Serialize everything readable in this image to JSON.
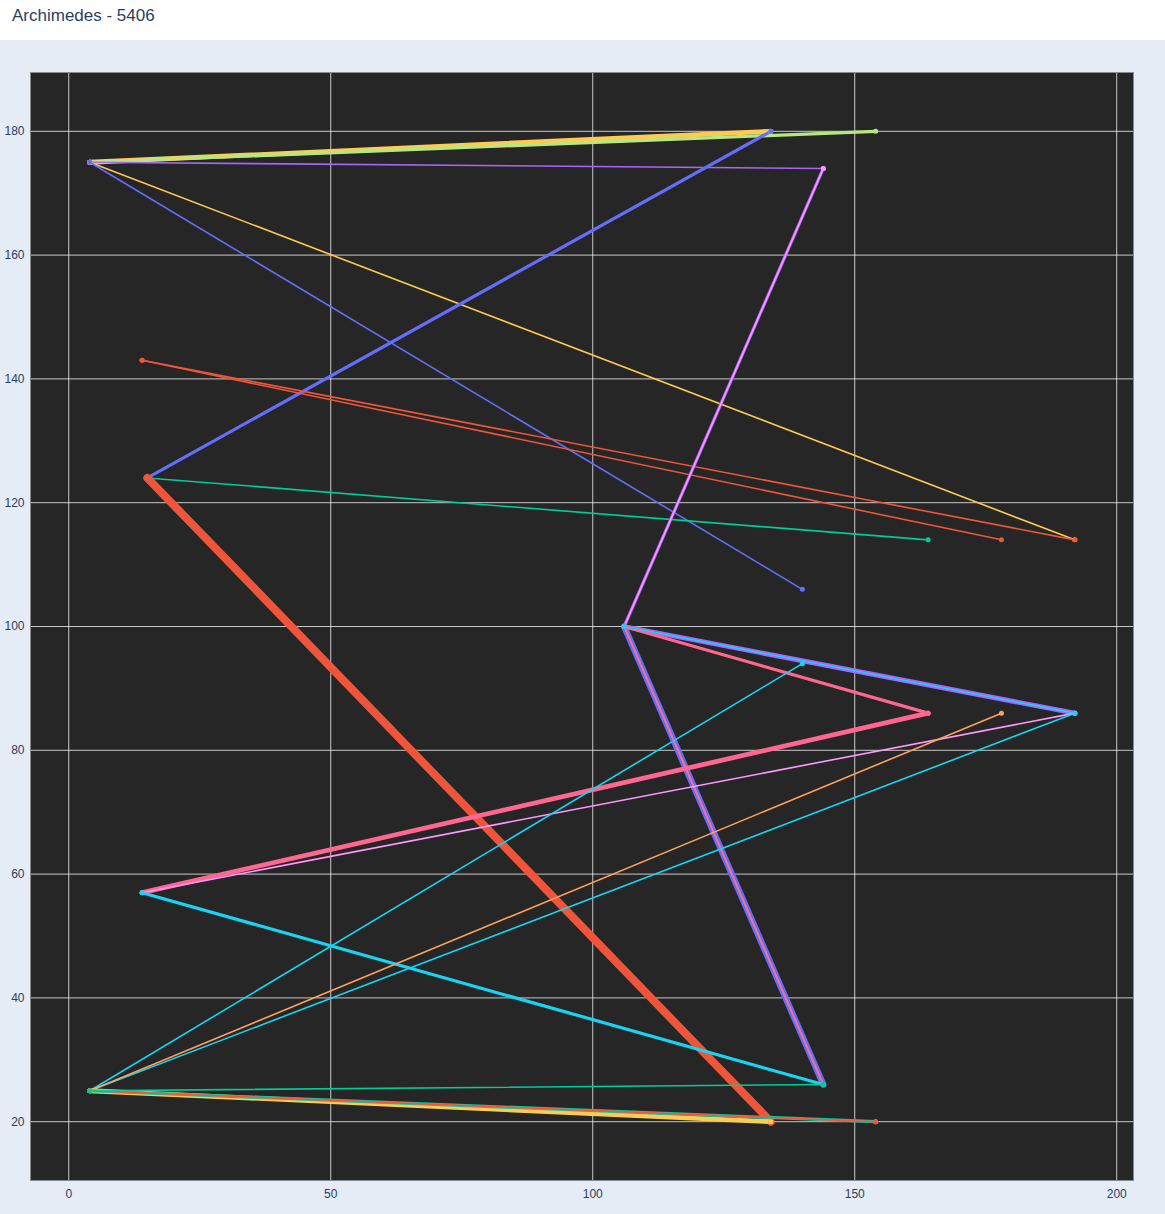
{
  "chart_data": {
    "type": "line",
    "title": "Archimedes - 5406",
    "xlim": [
      -7.3,
      203.2
    ],
    "xticks": [
      0,
      50,
      100,
      150,
      200
    ],
    "ylim": [
      10.5,
      189.5
    ],
    "yticks": [
      20,
      40,
      60,
      80,
      100,
      120,
      140,
      160,
      180
    ],
    "grid": true,
    "marker": "circle",
    "segments": [
      {
        "x": [
          4,
          134
        ],
        "y": [
          175,
          180
        ],
        "color": "#FECB52",
        "count": 3
      },
      {
        "x": [
          4,
          154
        ],
        "y": [
          175,
          180
        ],
        "color": "#B6E880",
        "count": 2
      },
      {
        "x": [
          4,
          144
        ],
        "y": [
          175,
          174
        ],
        "color": "#ab63fa",
        "count": 1
      },
      {
        "x": [
          4,
          192
        ],
        "y": [
          175,
          114
        ],
        "color": "#FECB52",
        "count": 1
      },
      {
        "x": [
          4,
          140
        ],
        "y": [
          175,
          106
        ],
        "color": "#636efa",
        "count": 1
      },
      {
        "x": [
          15,
          134
        ],
        "y": [
          124,
          180
        ],
        "color": "#636efa",
        "count": 2
      },
      {
        "x": [
          15,
          164
        ],
        "y": [
          124,
          114
        ],
        "color": "#00cc96",
        "count": 1
      },
      {
        "x": [
          15,
          134
        ],
        "y": [
          124,
          20
        ],
        "color": "#EF553B",
        "count": 5
      },
      {
        "x": [
          14,
          178
        ],
        "y": [
          143,
          114
        ],
        "color": "#EF553B",
        "count": 1
      },
      {
        "x": [
          14,
          192
        ],
        "y": [
          143,
          114
        ],
        "color": "#EF553B",
        "count": 1
      },
      {
        "x": [
          106,
          144
        ],
        "y": [
          100,
          174
        ],
        "color": "#ab63fa",
        "count": 2
      },
      {
        "x": [
          106,
          144
        ],
        "y": [
          100,
          174
        ],
        "color": "#FF97FF",
        "count": 1
      },
      {
        "x": [
          106,
          144
        ],
        "y": [
          100,
          26
        ],
        "color": "#636efa",
        "count": 4
      },
      {
        "x": [
          106,
          144
        ],
        "y": [
          100,
          26
        ],
        "color": "#FFA15A",
        "count": 1
      },
      {
        "x": [
          106,
          144
        ],
        "y": [
          100,
          26
        ],
        "color": "#FF6692",
        "count": 1
      },
      {
        "x": [
          106,
          192
        ],
        "y": [
          100,
          86
        ],
        "color": "#ab63fa",
        "count": 3
      },
      {
        "x": [
          106,
          164
        ],
        "y": [
          100,
          86
        ],
        "color": "#FF6692",
        "count": 2
      },
      {
        "x": [
          106,
          192
        ],
        "y": [
          100,
          86
        ],
        "color": "#19d3f3",
        "count": 1
      },
      {
        "x": [
          14,
          164
        ],
        "y": [
          57,
          86
        ],
        "color": "#FF6692",
        "count": 3
      },
      {
        "x": [
          14,
          192
        ],
        "y": [
          57,
          86
        ],
        "color": "#FF97FF",
        "count": 1
      },
      {
        "x": [
          14,
          144
        ],
        "y": [
          57,
          26
        ],
        "color": "#19d3f3",
        "count": 2
      },
      {
        "x": [
          4,
          140
        ],
        "y": [
          25,
          94
        ],
        "color": "#19d3f3",
        "count": 1
      },
      {
        "x": [
          4,
          192
        ],
        "y": [
          25,
          86
        ],
        "color": "#19d3f3",
        "count": 1
      },
      {
        "x": [
          4,
          178
        ],
        "y": [
          25,
          86
        ],
        "color": "#FFA15A",
        "count": 1
      },
      {
        "x": [
          4,
          134
        ],
        "y": [
          25,
          20
        ],
        "color": "#FECB52",
        "count": 3
      },
      {
        "x": [
          4,
          154
        ],
        "y": [
          25,
          20
        ],
        "color": "#00cc96",
        "count": 2
      },
      {
        "x": [
          4,
          154
        ],
        "y": [
          25,
          20
        ],
        "color": "#FF6692",
        "count": 1
      },
      {
        "x": [
          4,
          154
        ],
        "y": [
          25,
          20
        ],
        "color": "#EF553B",
        "count": 1
      },
      {
        "x": [
          4,
          144
        ],
        "y": [
          25,
          26
        ],
        "color": "#00cc96",
        "count": 1
      }
    ]
  }
}
